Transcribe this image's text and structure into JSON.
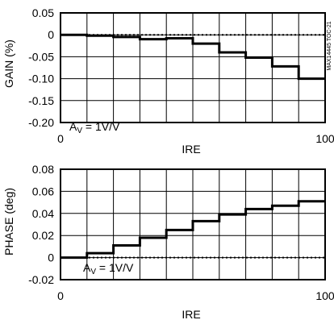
{
  "figure_id": "MAX14445 TOC-21",
  "chart_data": [
    {
      "type": "line",
      "ylabel": "GAIN (%)",
      "xlabel": "IRE",
      "annotation": "AV = 1V/V",
      "annotation_main": "A",
      "annotation_sub": "V",
      "annotation_rest": " = 1V/V",
      "xlim": [
        0,
        100
      ],
      "ylim": [
        -0.2,
        0.05
      ],
      "x_ticks": [
        "0",
        "100"
      ],
      "y_ticks": [
        "0.05",
        "0",
        "-0.05",
        "-0.10",
        "-0.15",
        "-0.20"
      ],
      "y_tick_values": [
        0.05,
        0,
        -0.05,
        -0.1,
        -0.15,
        -0.2
      ],
      "grid": true,
      "reference_line": 0,
      "series": [
        {
          "x": [
            0,
            10,
            20,
            30,
            40,
            50,
            60,
            70,
            80,
            90,
            100
          ],
          "y": [
            0.0,
            -0.002,
            -0.005,
            -0.01,
            -0.008,
            -0.02,
            -0.04,
            -0.052,
            -0.072,
            -0.1,
            -0.1
          ],
          "step": true
        }
      ]
    },
    {
      "type": "line",
      "ylabel": "PHASE (deg)",
      "xlabel": "IRE",
      "annotation_main": "A",
      "annotation_sub": "V",
      "annotation_rest": " = 1V/V",
      "xlim": [
        0,
        100
      ],
      "ylim": [
        -0.02,
        0.08
      ],
      "x_ticks": [
        "0",
        "100"
      ],
      "y_ticks": [
        "0.08",
        "0.06",
        "0.04",
        "0.02",
        "0",
        "-0.02"
      ],
      "y_tick_values": [
        0.08,
        0.06,
        0.04,
        0.02,
        0,
        -0.02
      ],
      "grid": true,
      "reference_line": 0,
      "series": [
        {
          "x": [
            0,
            10,
            20,
            30,
            40,
            50,
            60,
            70,
            80,
            90,
            100
          ],
          "y": [
            0.0,
            0.004,
            0.011,
            0.018,
            0.025,
            0.033,
            0.039,
            0.044,
            0.047,
            0.051,
            0.051
          ],
          "step": true
        }
      ]
    }
  ]
}
